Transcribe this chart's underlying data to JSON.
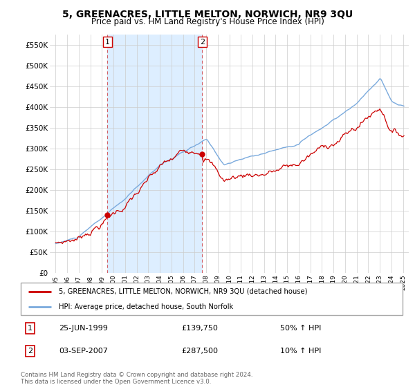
{
  "title": "5, GREENACRES, LITTLE MELTON, NORWICH, NR9 3QU",
  "subtitle": "Price paid vs. HM Land Registry's House Price Index (HPI)",
  "legend_property": "5, GREENACRES, LITTLE MELTON, NORWICH, NR9 3QU (detached house)",
  "legend_hpi": "HPI: Average price, detached house, South Norfolk",
  "footer": "Contains HM Land Registry data © Crown copyright and database right 2024.\nThis data is licensed under the Open Government Licence v3.0.",
  "annotation1_label": "1",
  "annotation1_date": "25-JUN-1999",
  "annotation1_price": "£139,750",
  "annotation1_hpi": "50% ↑ HPI",
  "annotation2_label": "2",
  "annotation2_date": "03-SEP-2007",
  "annotation2_price": "£287,500",
  "annotation2_hpi": "10% ↑ HPI",
  "sale1_x": 1999.48,
  "sale1_y": 139750,
  "sale2_x": 2007.67,
  "sale2_y": 287500,
  "property_color": "#cc0000",
  "hpi_color": "#7aaadd",
  "shade_color": "#ddeeff",
  "dashed_line_color": "#cc0000",
  "ylim": [
    0,
    575000
  ],
  "xlim_start": 1994.5,
  "xlim_end": 2025.5,
  "yticks": [
    0,
    50000,
    100000,
    150000,
    200000,
    250000,
    300000,
    350000,
    400000,
    450000,
    500000,
    550000
  ],
  "ytick_labels": [
    "£0",
    "£50K",
    "£100K",
    "£150K",
    "£200K",
    "£250K",
    "£300K",
    "£350K",
    "£400K",
    "£450K",
    "£500K",
    "£550K"
  ],
  "xticks": [
    1995,
    1996,
    1997,
    1998,
    1999,
    2000,
    2001,
    2002,
    2003,
    2004,
    2005,
    2006,
    2007,
    2008,
    2009,
    2010,
    2011,
    2012,
    2013,
    2014,
    2015,
    2016,
    2017,
    2018,
    2019,
    2020,
    2021,
    2022,
    2023,
    2024,
    2025
  ]
}
